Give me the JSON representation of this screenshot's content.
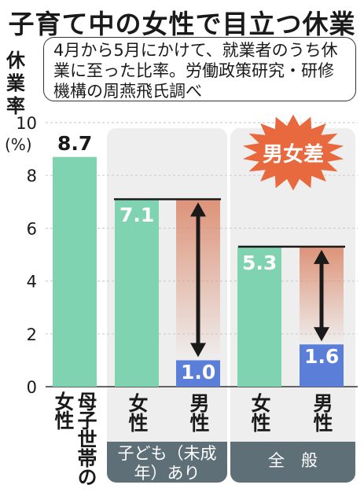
{
  "header": {
    "title": "子育て中の女性で目立つ休業",
    "subtitle": "4月から5月にかけて、就業者のうち休業に至った比率。労働政策研究・研修機構の周燕飛氏調べ"
  },
  "callout": {
    "text": "男女差"
  },
  "chart_data": {
    "type": "bar",
    "ylabel": "休業率",
    "yunit": "(%)",
    "ylim": [
      0,
      10
    ],
    "yticks": [
      "0",
      "2",
      "4",
      "6",
      "8",
      "10"
    ],
    "categories": [
      "母子世帯の女性",
      "女性",
      "男性",
      "女性",
      "男性"
    ],
    "values": [
      8.7,
      7.1,
      1.0,
      5.3,
      1.6
    ],
    "value_labels": [
      "8.7",
      "7.1",
      "1.0",
      "5.3",
      "1.6"
    ],
    "groups": [
      {
        "label": "",
        "members": [
          0
        ]
      },
      {
        "label": "子ども（未成年）あり",
        "members": [
          1,
          2
        ]
      },
      {
        "label": "全　般",
        "members": [
          3,
          4
        ]
      }
    ],
    "colors": {
      "female": "#7fd3b0",
      "male": "#5b7fd9",
      "group_background": "#eeeeee",
      "group_label_background": "#5f6f78",
      "gap_gradient": "#dc8e72",
      "callout": "#e8693e"
    }
  }
}
